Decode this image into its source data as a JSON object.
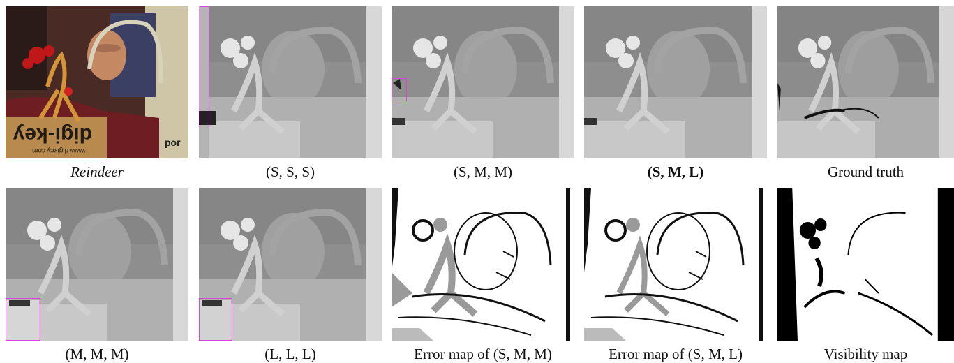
{
  "panels": [
    {
      "caption": "Reindeer",
      "style": "italic",
      "kind": "photo"
    },
    {
      "caption": "(S, S, S)",
      "style": "normal",
      "kind": "depth"
    },
    {
      "caption": "(S, M, M)",
      "style": "normal",
      "kind": "depth"
    },
    {
      "caption": "(S, M, L)",
      "style": "bold",
      "kind": "depth"
    },
    {
      "caption": "Ground truth",
      "style": "normal",
      "kind": "depth"
    },
    {
      "caption": "(M, M, M)",
      "style": "normal",
      "kind": "depth"
    },
    {
      "caption": "(L, L, L)",
      "style": "normal",
      "kind": "depth"
    },
    {
      "caption": "Error map of (S, M, M)",
      "style": "normal",
      "kind": "error"
    },
    {
      "caption": "Error map of (S, M, L)",
      "style": "normal",
      "kind": "error"
    },
    {
      "caption": "Visibility map",
      "style": "normal",
      "kind": "visibility"
    }
  ],
  "photo_labels": {
    "box_text": "digi-key",
    "url_text": "www.digikey.com",
    "side_text": "por"
  },
  "colors": {
    "highlight": "#e040e0"
  }
}
